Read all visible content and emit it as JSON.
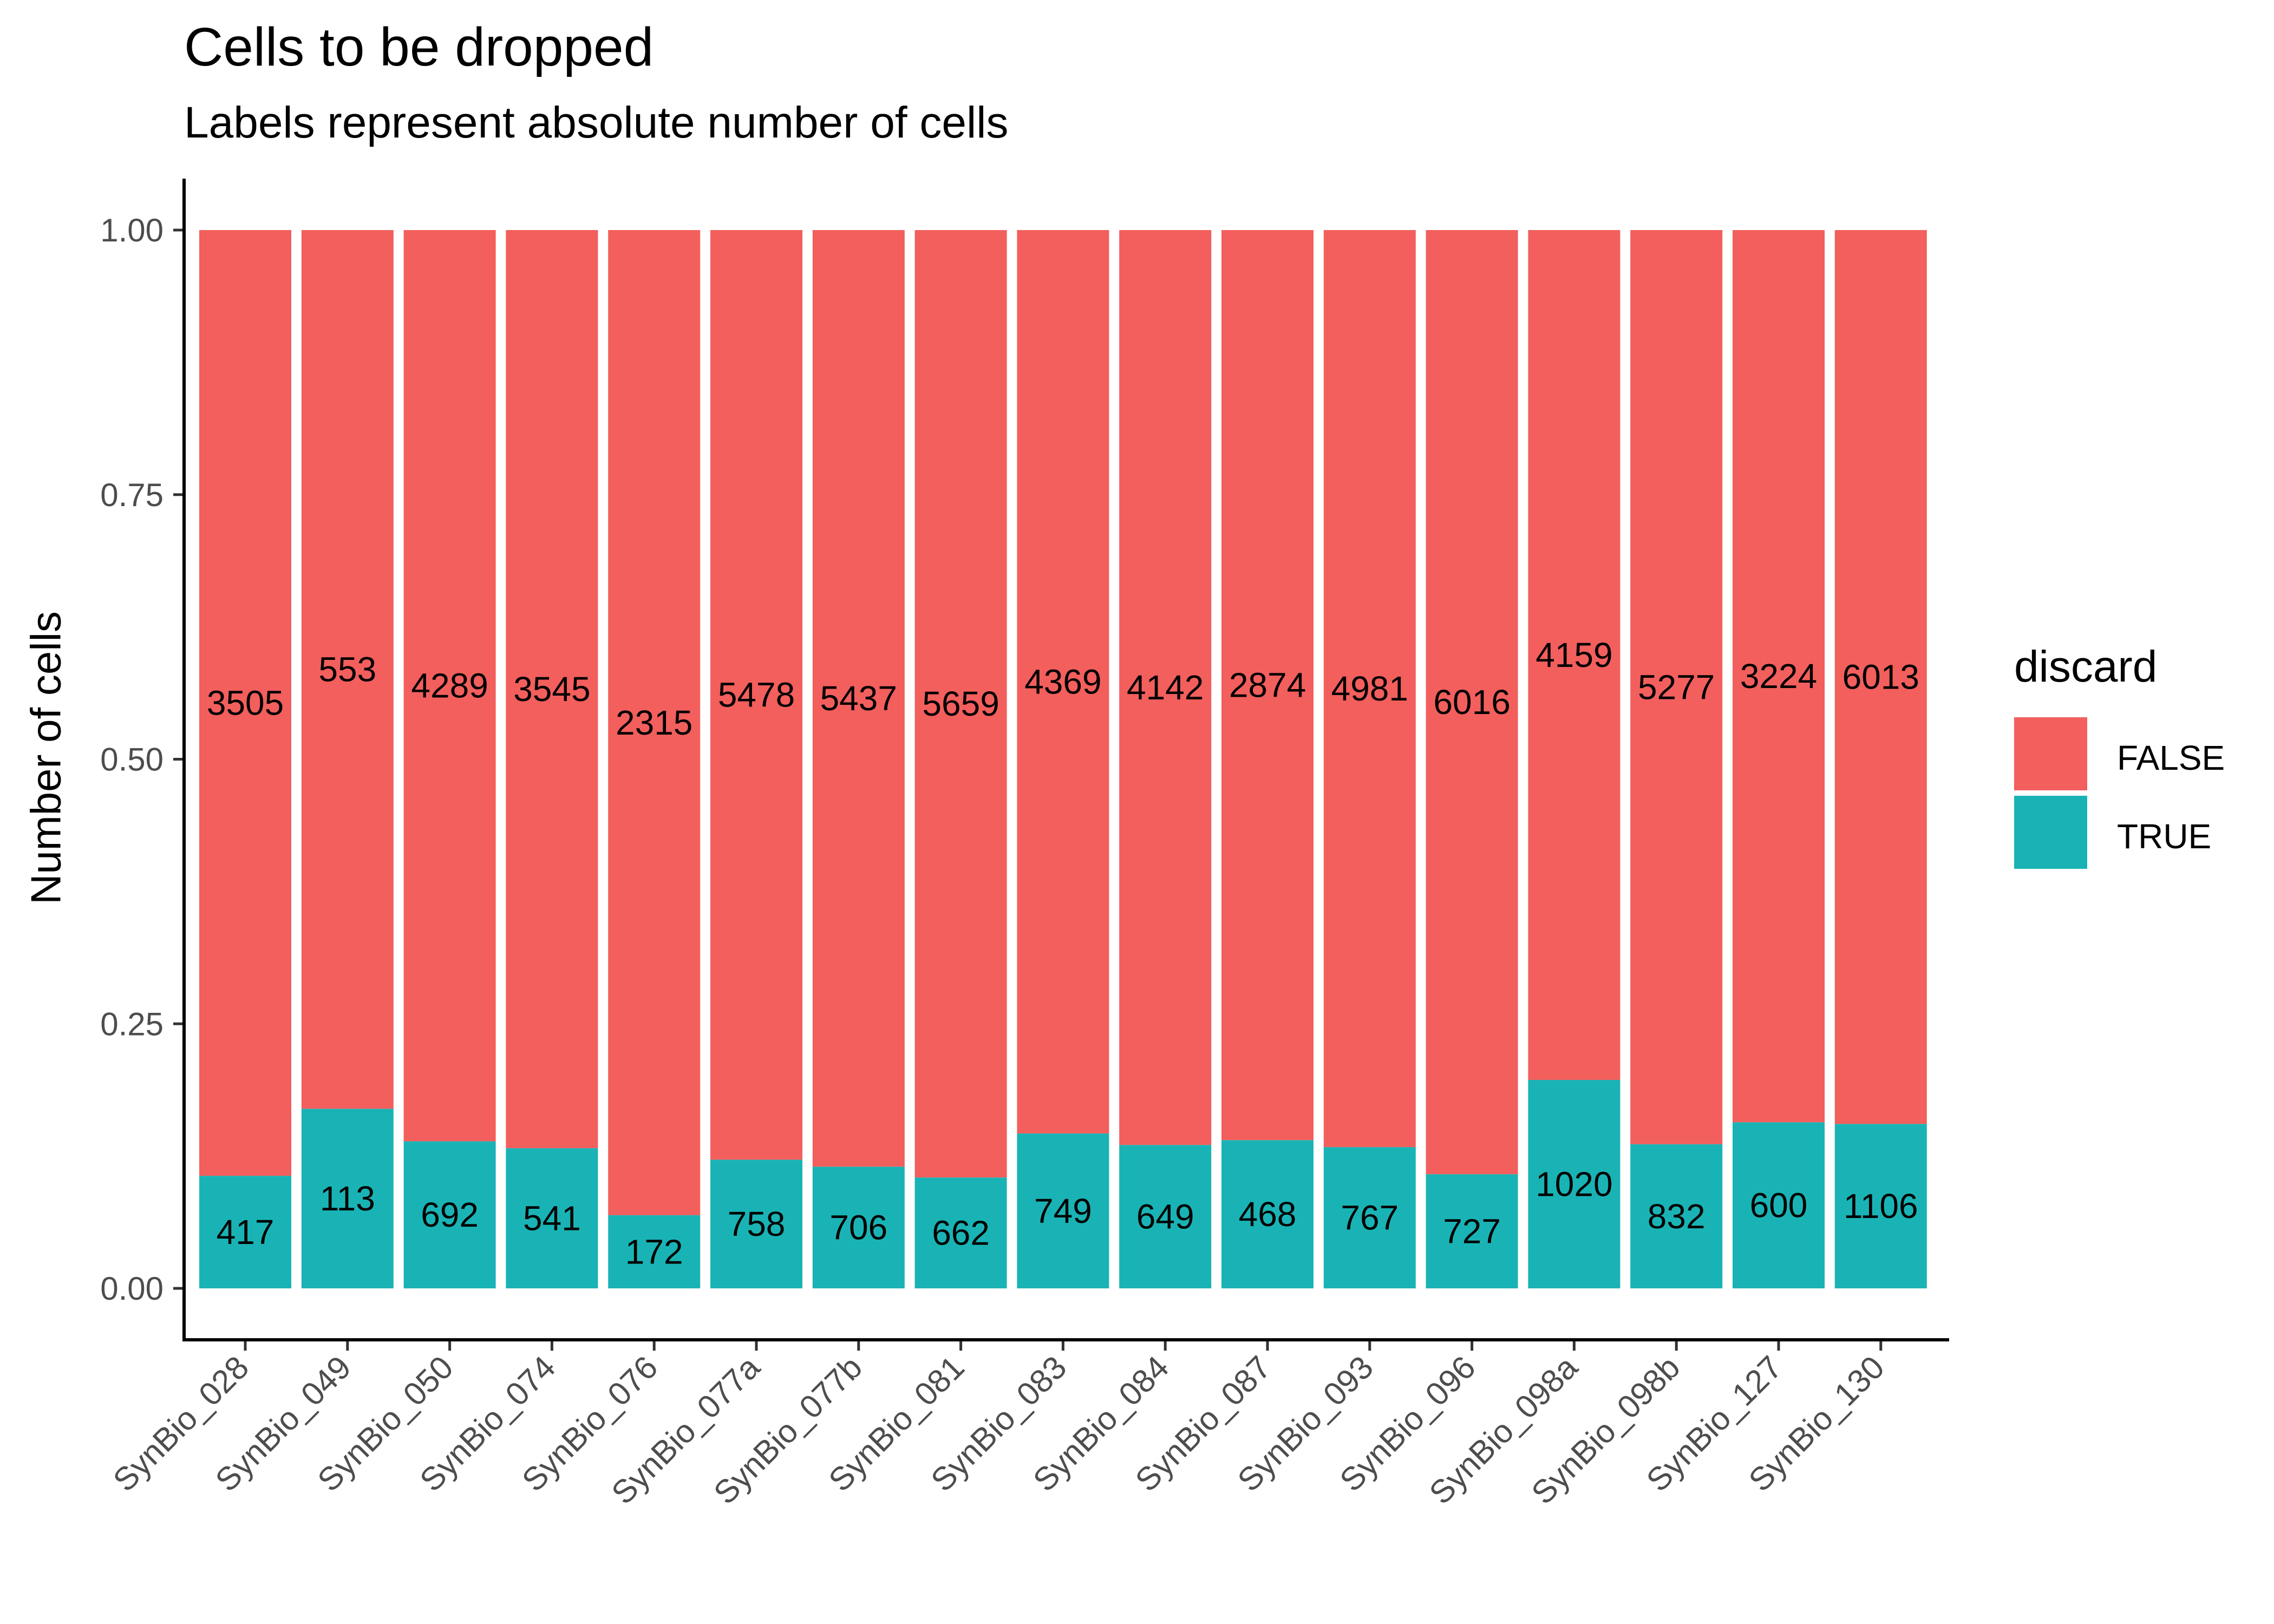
{
  "chart_data": {
    "type": "bar",
    "stacked": "percent",
    "title": "Cells to be dropped",
    "subtitle": "Labels represent absolute number of cells",
    "xlabel": "",
    "ylabel": "Number of cells",
    "ylim": [
      0,
      1
    ],
    "yticks": [
      "0.00",
      "0.25",
      "0.50",
      "0.75",
      "1.00"
    ],
    "categories": [
      "SynBio_028",
      "SynBio_049",
      "SynBio_050",
      "SynBio_074",
      "SynBio_076",
      "SynBio_077a",
      "SynBio_077b",
      "SynBio_081",
      "SynBio_083",
      "SynBio_084",
      "SynBio_087",
      "SynBio_093",
      "SynBio_096",
      "SynBio_098a",
      "SynBio_098b",
      "SynBio_127",
      "SynBio_130"
    ],
    "legend": {
      "title": "discard",
      "position": "right"
    },
    "grid": false,
    "series": [
      {
        "name": "FALSE",
        "color": "#F25F5C",
        "values": [
          3505,
          553,
          4289,
          3545,
          2315,
          5478,
          5437,
          5659,
          4369,
          4142,
          2874,
          4981,
          6016,
          4159,
          5277,
          3224,
          6013
        ]
      },
      {
        "name": "TRUE",
        "color": "#1AB3B5",
        "values": [
          417,
          113,
          692,
          541,
          172,
          758,
          706,
          662,
          749,
          649,
          468,
          767,
          727,
          1020,
          832,
          600,
          1106
        ]
      }
    ]
  }
}
